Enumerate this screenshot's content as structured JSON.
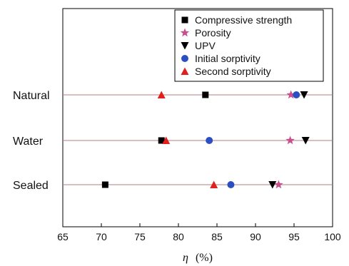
{
  "chart_data": {
    "type": "scatter",
    "title": "",
    "xlabel_symbol": "η",
    "xlabel_unit": "(%)",
    "xlim": [
      65,
      100
    ],
    "x_ticks": [
      "65",
      "70",
      "75",
      "80",
      "85",
      "90",
      "95",
      "100"
    ],
    "categories": [
      "Natural",
      "Water",
      "Sealed"
    ],
    "legend_position": "top-right",
    "grid": false,
    "series": [
      {
        "name": "Compressive strength",
        "marker": "square",
        "color": "#000000",
        "values": [
          83.5,
          77.8,
          70.5
        ]
      },
      {
        "name": "Porosity",
        "marker": "star",
        "color": "#c8508e",
        "values": [
          94.6,
          94.5,
          93.0
        ]
      },
      {
        "name": "UPV",
        "marker": "triangle-down",
        "color": "#000000",
        "values": [
          96.3,
          96.5,
          92.2
        ]
      },
      {
        "name": "Initial sorptivity",
        "marker": "circle",
        "color": "#2b4fc3",
        "values": [
          95.3,
          84.0,
          86.8
        ]
      },
      {
        "name": "Second sorptivity",
        "marker": "triangle-up",
        "color": "#e0201c",
        "values": [
          77.8,
          78.4,
          84.6
        ]
      }
    ]
  }
}
